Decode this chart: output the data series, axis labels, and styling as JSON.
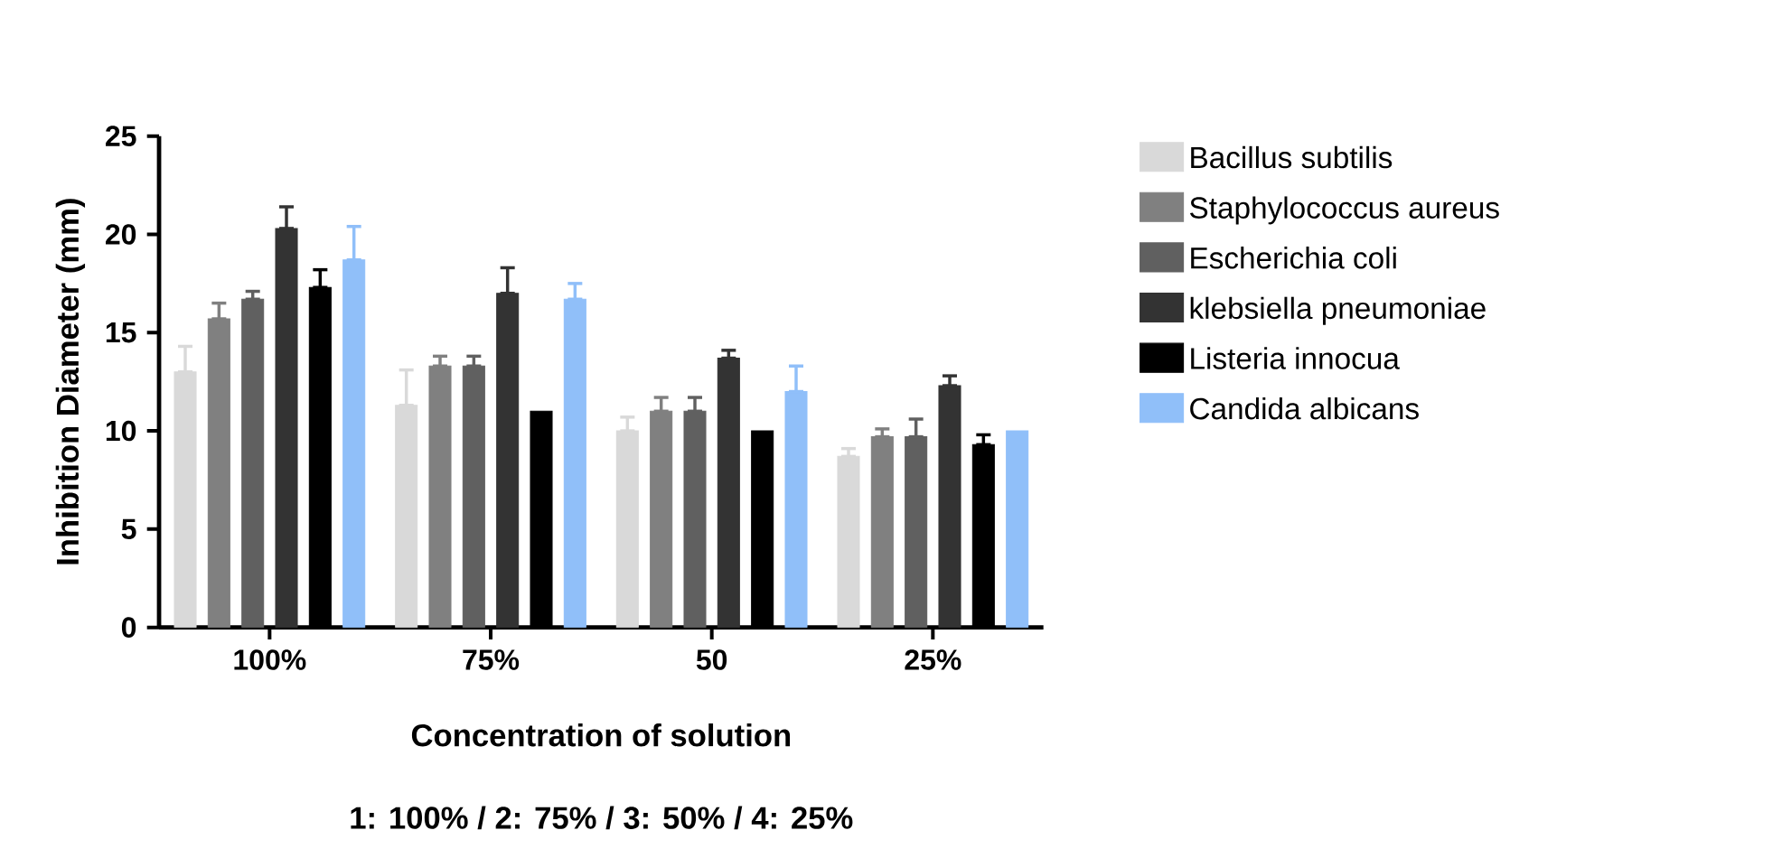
{
  "chart_data": {
    "type": "bar",
    "xlabel": "Concentration of solution",
    "ylabel": "Inhibition Diameter (mm)",
    "annotations": [
      "1: 100%  / 2: 75% / 3: 50% / 4: 25%"
    ],
    "categories": [
      "100%",
      "75%",
      "50",
      "25%"
    ],
    "ylim": [
      0,
      25
    ],
    "yticks": [
      0,
      5,
      10,
      15,
      20,
      25
    ],
    "legend": "top right",
    "grid": false,
    "series": [
      {
        "name": "Bacillus subtilis",
        "color": "#d9d9d9",
        "values": [
          13,
          11.3,
          10,
          8.7
        ],
        "errors": [
          [
            13,
            14.3
          ],
          [
            11.3,
            13.1
          ],
          [
            10,
            10.7
          ],
          [
            8.7,
            9.1
          ]
        ]
      },
      {
        "name": "Staphylococcus aureus",
        "color": "#808080",
        "values": [
          15.7,
          13.3,
          11,
          9.7
        ],
        "errors": [
          [
            15.7,
            16.5
          ],
          [
            13.3,
            13.8
          ],
          [
            11,
            11.7
          ],
          [
            9.7,
            10.1
          ]
        ]
      },
      {
        "name": "Escherichia coli",
        "color": "#606060",
        "values": [
          16.7,
          13.3,
          11,
          9.7
        ],
        "errors": [
          [
            16.7,
            17.1
          ],
          [
            13.3,
            13.8
          ],
          [
            11,
            11.7
          ],
          [
            9.7,
            10.6
          ]
        ]
      },
      {
        "name": "klebsiella pneumoniae",
        "color": "#333333",
        "values": [
          20.3,
          17,
          13.7,
          12.3
        ],
        "errors": [
          [
            20.3,
            21.4
          ],
          [
            17,
            18.3
          ],
          [
            13.7,
            14.1
          ],
          [
            12.3,
            12.8
          ]
        ]
      },
      {
        "name": "Listeria innocua",
        "color": "#000000",
        "values": [
          17.3,
          11,
          10,
          9.3
        ],
        "errors": [
          [
            17.3,
            18.2
          ],
          null,
          null,
          [
            9.3,
            9.8
          ]
        ]
      },
      {
        "name": "Candida albicans",
        "color": "#90bff9",
        "values": [
          18.7,
          16.7,
          12,
          10
        ],
        "errors": [
          [
            18.7,
            20.4
          ],
          [
            16.7,
            17.5
          ],
          [
            12,
            13.3
          ],
          null
        ]
      }
    ]
  }
}
